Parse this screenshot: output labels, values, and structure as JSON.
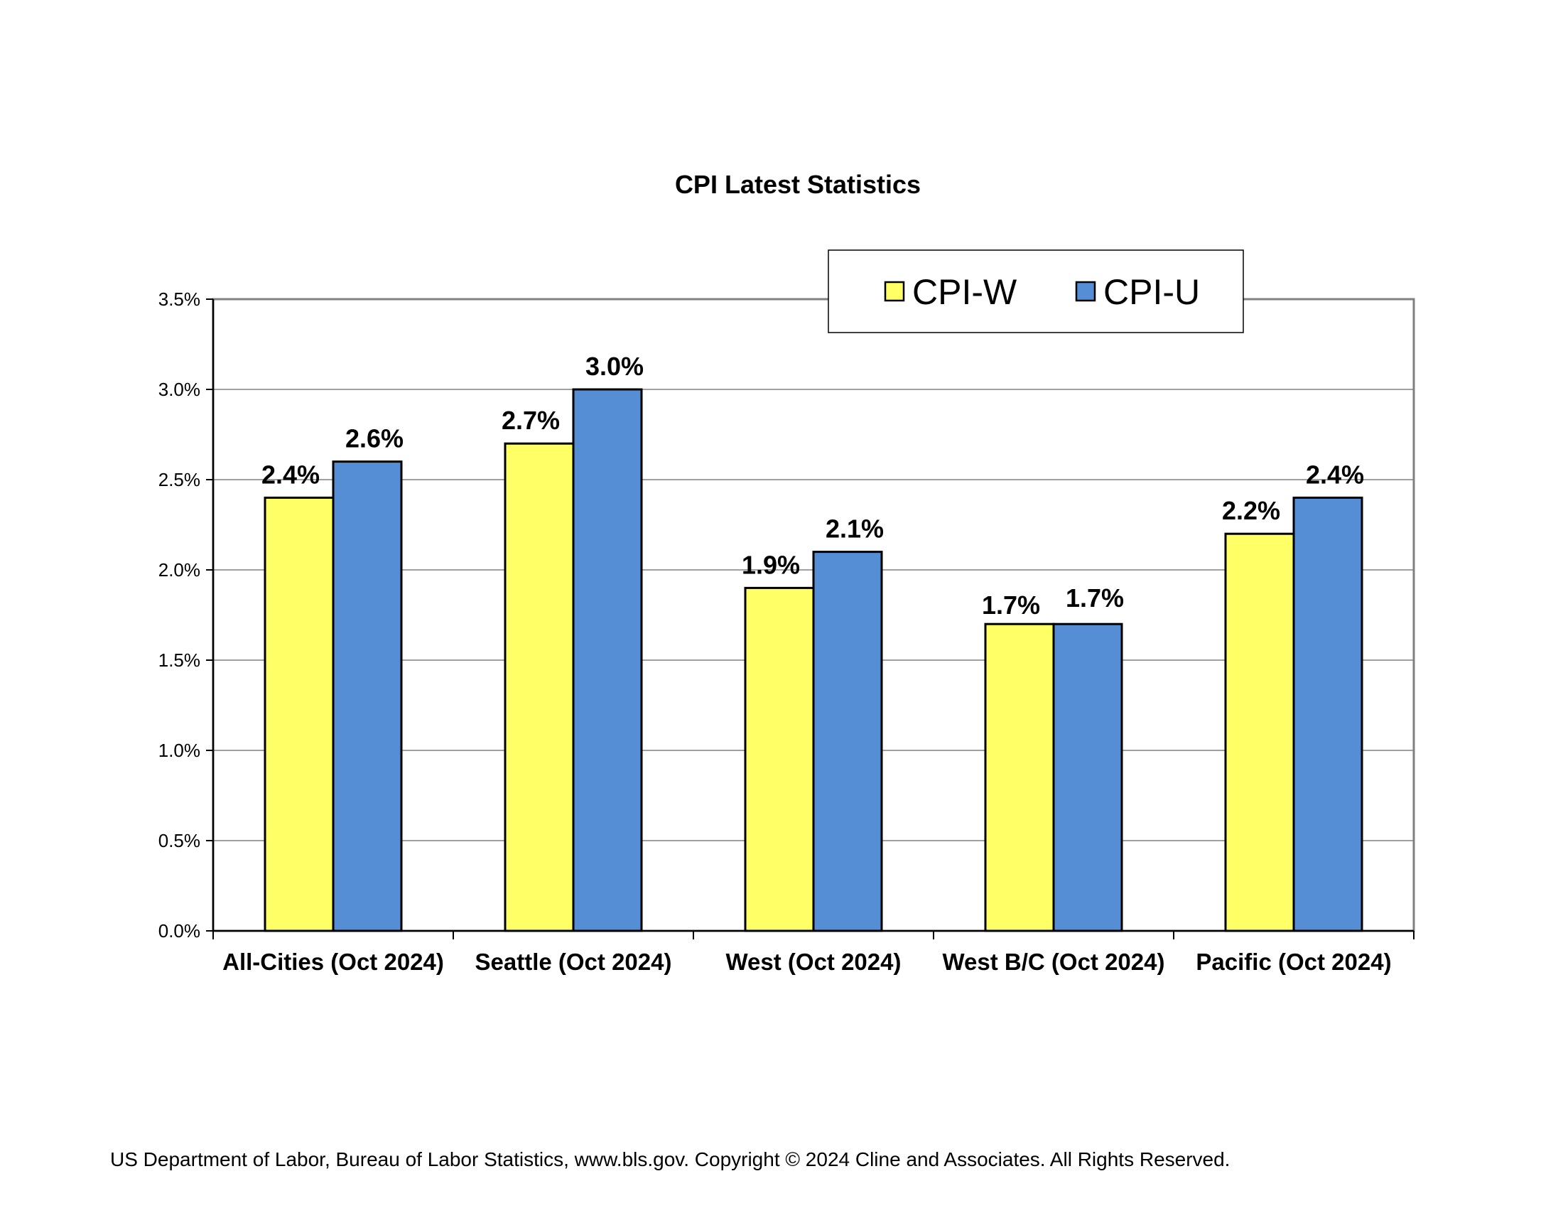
{
  "chart_data": {
    "type": "bar",
    "title": "CPI Latest Statistics",
    "categories": [
      "All-Cities (Oct 2024)",
      "Seattle (Oct 2024)",
      "West (Oct 2024)",
      "West B/C (Oct 2024)",
      "Pacific (Oct 2024)"
    ],
    "series": [
      {
        "name": "CPI-W",
        "color": "#ffff66",
        "values": [
          2.4,
          2.7,
          1.9,
          1.7,
          2.2
        ],
        "labels": [
          "2.4%",
          "2.7%",
          "1.9%",
          "1.7%",
          "2.2%"
        ]
      },
      {
        "name": "CPI-U",
        "color": "#558ed5",
        "values": [
          2.6,
          3.0,
          2.1,
          1.7,
          2.4
        ],
        "labels": [
          "2.6%",
          "3.0%",
          "2.1%",
          "1.7%",
          "2.4%"
        ]
      }
    ],
    "ylim": [
      0,
      3.5
    ],
    "yticks": [
      "0.0%",
      "0.5%",
      "1.0%",
      "1.5%",
      "2.0%",
      "2.5%",
      "3.0%",
      "3.5%"
    ],
    "ytick_values": [
      0,
      0.5,
      1.0,
      1.5,
      2.0,
      2.5,
      3.0,
      3.5
    ],
    "grid": true,
    "legend": "top-right"
  },
  "footer": "US Department of Labor, Bureau of Labor Statistics, www.bls.gov.   Copyright © 2024 Cline and Associates.  All Rights Reserved."
}
